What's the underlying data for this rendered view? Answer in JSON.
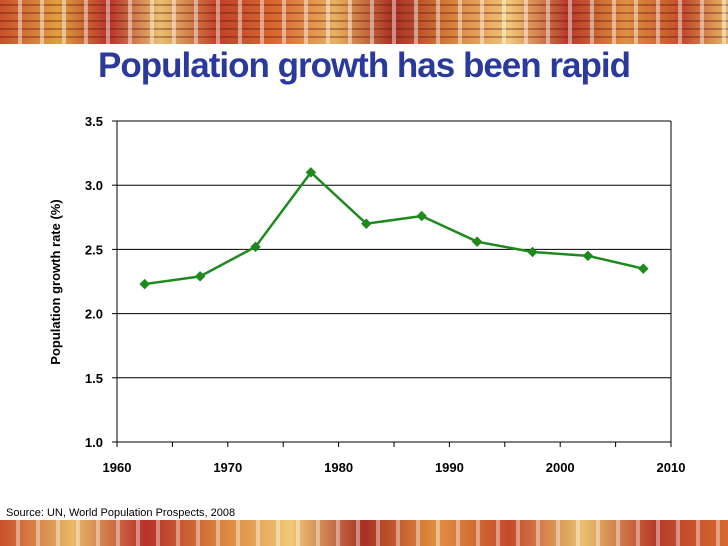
{
  "slide": {
    "title": "Population growth has been rapid",
    "source": "Source: UN, World Population Prospects, 2008"
  },
  "colors": {
    "title": "#2a3a9c",
    "series": "#1e8a1e",
    "band": "#c8502a"
  },
  "chart_data": {
    "type": "line",
    "title": "",
    "xlabel": "",
    "ylabel": "Population growth rate (%)",
    "xlim": [
      1960,
      2010
    ],
    "ylim": [
      1.0,
      3.5
    ],
    "xticks": [
      "1960",
      "1970",
      "1980",
      "1990",
      "2000",
      "2010"
    ],
    "yticks": [
      "1.0",
      "1.5",
      "2.0",
      "2.5",
      "3.0",
      "3.5"
    ],
    "grid": "horizontal",
    "legend": "none",
    "marker": "diamond",
    "series": [
      {
        "x": [
          1962.5,
          1967.5,
          1972.5,
          1977.5,
          1982.5,
          1987.5,
          1992.5,
          1997.5,
          2002.5,
          2007.5
        ],
        "values": [
          2.23,
          2.29,
          2.52,
          3.1,
          2.7,
          2.76,
          2.56,
          2.48,
          2.45,
          2.35
        ]
      }
    ]
  }
}
